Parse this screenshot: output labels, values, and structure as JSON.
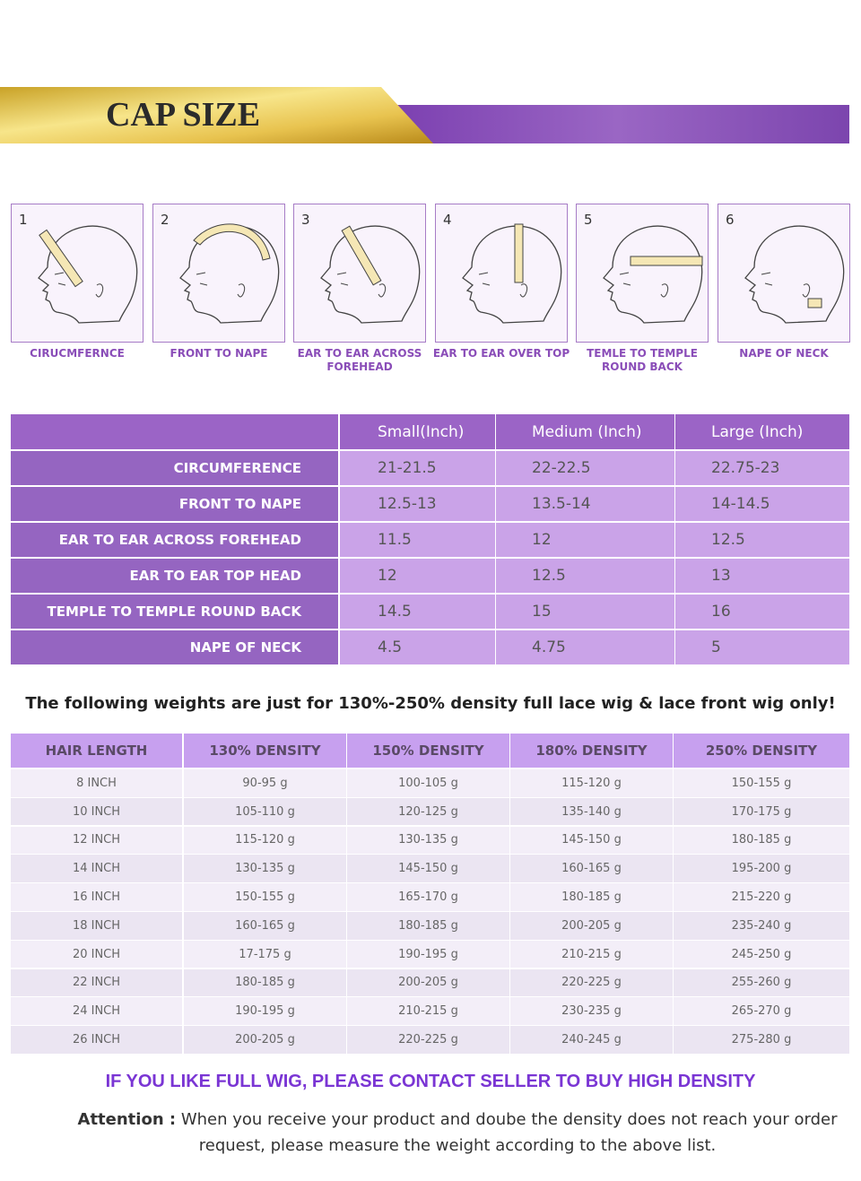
{
  "header": {
    "title": "CAP SIZE"
  },
  "measurements": [
    {
      "number": 1,
      "label": "CIRUCMFERNCE"
    },
    {
      "number": 2,
      "label": "FRONT TO NAPE"
    },
    {
      "number": 3,
      "label": "EAR TO EAR ACROSS FOREHEAD"
    },
    {
      "number": 4,
      "label": "EAR TO EAR OVER TOP"
    },
    {
      "number": 5,
      "label": "TEMLE TO TEMPLE ROUND BACK"
    },
    {
      "number": 6,
      "label": "NAPE OF NECK"
    }
  ],
  "size_table": {
    "columns": [
      "Small(Inch)",
      "Medium (Inch)",
      "Large (Inch)"
    ],
    "rows": [
      {
        "label": "CIRCUMFERENCE",
        "values": [
          "21-21.5",
          "22-22.5",
          "22.75-23"
        ]
      },
      {
        "label": "FRONT TO NAPE",
        "values": [
          "12.5-13",
          "13.5-14",
          "14-14.5"
        ]
      },
      {
        "label": "EAR TO EAR ACROSS FOREHEAD",
        "values": [
          "11.5",
          "12",
          "12.5"
        ]
      },
      {
        "label": "EAR TO EAR TOP HEAD",
        "values": [
          "12",
          "12.5",
          "13"
        ]
      },
      {
        "label": "TEMPLE TO TEMPLE ROUND BACK",
        "values": [
          "14.5",
          "15",
          "16"
        ]
      },
      {
        "label": "NAPE OF NECK",
        "values": [
          "4.5",
          "4.75",
          "5"
        ]
      }
    ]
  },
  "weight_note": "The following weights are just for 130%-250% density full lace wig & lace front wig only!",
  "weight_table": {
    "columns": [
      "HAIR LENGTH",
      "130% DENSITY",
      "150% DENSITY",
      "180% DENSITY",
      "250% DENSITY"
    ],
    "rows": [
      [
        "8 INCH",
        "90-95 g",
        "100-105 g",
        "115-120 g",
        "150-155 g"
      ],
      [
        "10 INCH",
        "105-110 g",
        "120-125 g",
        "135-140 g",
        "170-175 g"
      ],
      [
        "12 INCH",
        "115-120 g",
        "130-135 g",
        "145-150 g",
        "180-185 g"
      ],
      [
        "14 INCH",
        "130-135 g",
        "145-150 g",
        "160-165 g",
        "195-200 g"
      ],
      [
        "16 INCH",
        "150-155 g",
        "165-170 g",
        "180-185 g",
        "215-220 g"
      ],
      [
        "18 INCH",
        "160-165 g",
        "180-185 g",
        "200-205 g",
        "235-240 g"
      ],
      [
        "20 INCH",
        "17-175 g",
        "190-195 g",
        "210-215 g",
        "245-250 g"
      ],
      [
        "22 INCH",
        "180-185 g",
        "200-205 g",
        "220-225 g",
        "255-260 g"
      ],
      [
        "24 INCH",
        "190-195 g",
        "210-215 g",
        "230-235 g",
        "265-270 g"
      ],
      [
        "26 INCH",
        "200-205 g",
        "220-225 g",
        "240-245 g",
        "275-280 g"
      ]
    ]
  },
  "contact": "IF YOU LIKE FULL WIG, PLEASE CONTACT SELLER TO BUY HIGH DENSITY",
  "attention": {
    "label": "Attention :",
    "text": "When you receive your product and doube the density does not reach your order request, please measure the weight according to the above list."
  }
}
